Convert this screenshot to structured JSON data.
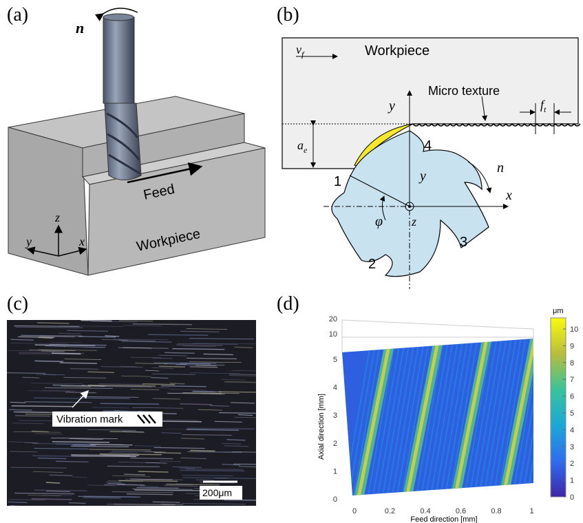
{
  "panel_a": {
    "label": "(a)",
    "rotation": "n",
    "feed": "Feed",
    "workpiece": "Workpiece",
    "axes": {
      "z": "z",
      "y": "y",
      "x": "x"
    }
  },
  "panel_b": {
    "label": "(b)",
    "feed_velocity": {
      "symbol": "v",
      "subscript": "f"
    },
    "workpiece": "Workpiece",
    "micro_texture": "Micro texture",
    "feed_per_tooth": {
      "symbol": "f",
      "subscript": "t"
    },
    "radial_depth": {
      "symbol": "a",
      "subscript": "e"
    },
    "axis_y_top": "y",
    "axis_y": "y",
    "axis_x": "x",
    "axis_z": "z",
    "rotation": "n",
    "angle": "φ",
    "teeth": [
      "1",
      "2",
      "3",
      "4"
    ]
  },
  "panel_c": {
    "label": "(c)",
    "annotation": "Vibration mark",
    "scale_bar": "200μm"
  },
  "panel_d": {
    "label": "(d)",
    "unit": "μm",
    "z_ticks": [
      "20",
      "10"
    ],
    "y_ticks": [
      "5",
      "4",
      "3",
      "2",
      "1",
      "0"
    ],
    "x_ticks": [
      "0",
      "0.2",
      "0.4",
      "0.6",
      "0.8",
      "1"
    ],
    "colorbar_ticks": [
      "0",
      "1",
      "2",
      "3",
      "4",
      "5",
      "6",
      "7",
      "8",
      "9",
      "10"
    ],
    "y_label": "Axial direction [mm]",
    "x_label": "Feed direction [mm]"
  }
}
